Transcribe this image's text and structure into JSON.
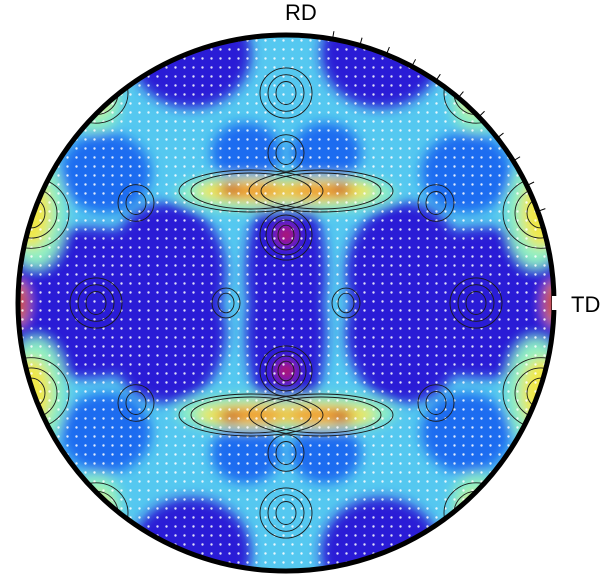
{
  "labels": {
    "rd": "RD",
    "td": "TD"
  },
  "colors": {
    "low": "#2a1fd6",
    "low_mid": "#1b6cf0",
    "mid": "#55c8f0",
    "mid_high": "#8ff0c4",
    "high": "#f0e84a",
    "very_high": "#f08a24",
    "peak": "#c21414",
    "contour": "#1a1a1a",
    "rim": "#000000"
  },
  "pole_figure": {
    "projection": "stereographic",
    "symmetry": "orthotropic",
    "contour_lines": true,
    "grid_dots": true
  }
}
